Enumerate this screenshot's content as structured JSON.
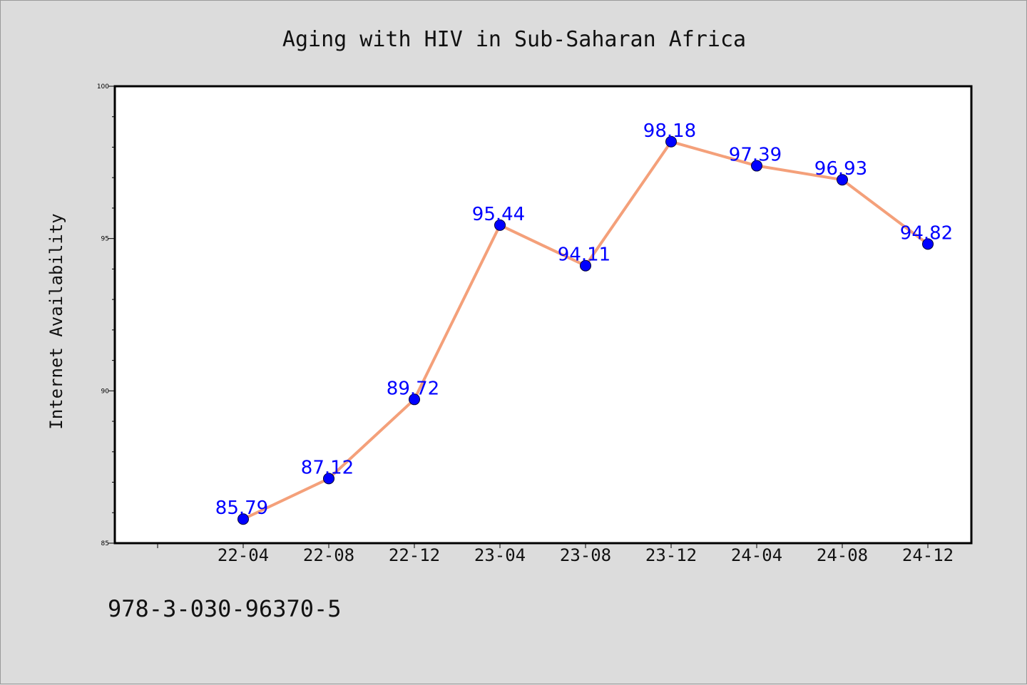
{
  "page": {
    "isbn": "978-3-030-96370-5",
    "background_color": "#dcdcdc"
  },
  "chart_data": {
    "type": "line",
    "title": "Aging with HIV in Sub-Saharan Africa",
    "xlabel": "",
    "ylabel": "Internet Availability",
    "categories": [
      "22-04",
      "22-08",
      "22-12",
      "23-04",
      "23-08",
      "23-12",
      "24-04",
      "24-08",
      "24-12"
    ],
    "series": [
      {
        "values": [
          85.79,
          87.12,
          89.72,
          95.44,
          94.11,
          98.18,
          97.39,
          96.93,
          94.82
        ],
        "value_labels": [
          "85.79",
          "87.12",
          "89.72",
          "95.44",
          "94.11",
          "98.18",
          "97.39",
          "96.93",
          "94.82"
        ],
        "line_color": "#f4a07a",
        "marker_color": "#0000ff",
        "label_color": "#0000ff"
      }
    ],
    "ylim": [
      85,
      100
    ],
    "yticks": [
      85,
      90,
      95,
      100
    ],
    "ytick_labels": [
      "85",
      "90",
      "95",
      "100"
    ],
    "grid": false,
    "plot_background": "#ffffff"
  }
}
